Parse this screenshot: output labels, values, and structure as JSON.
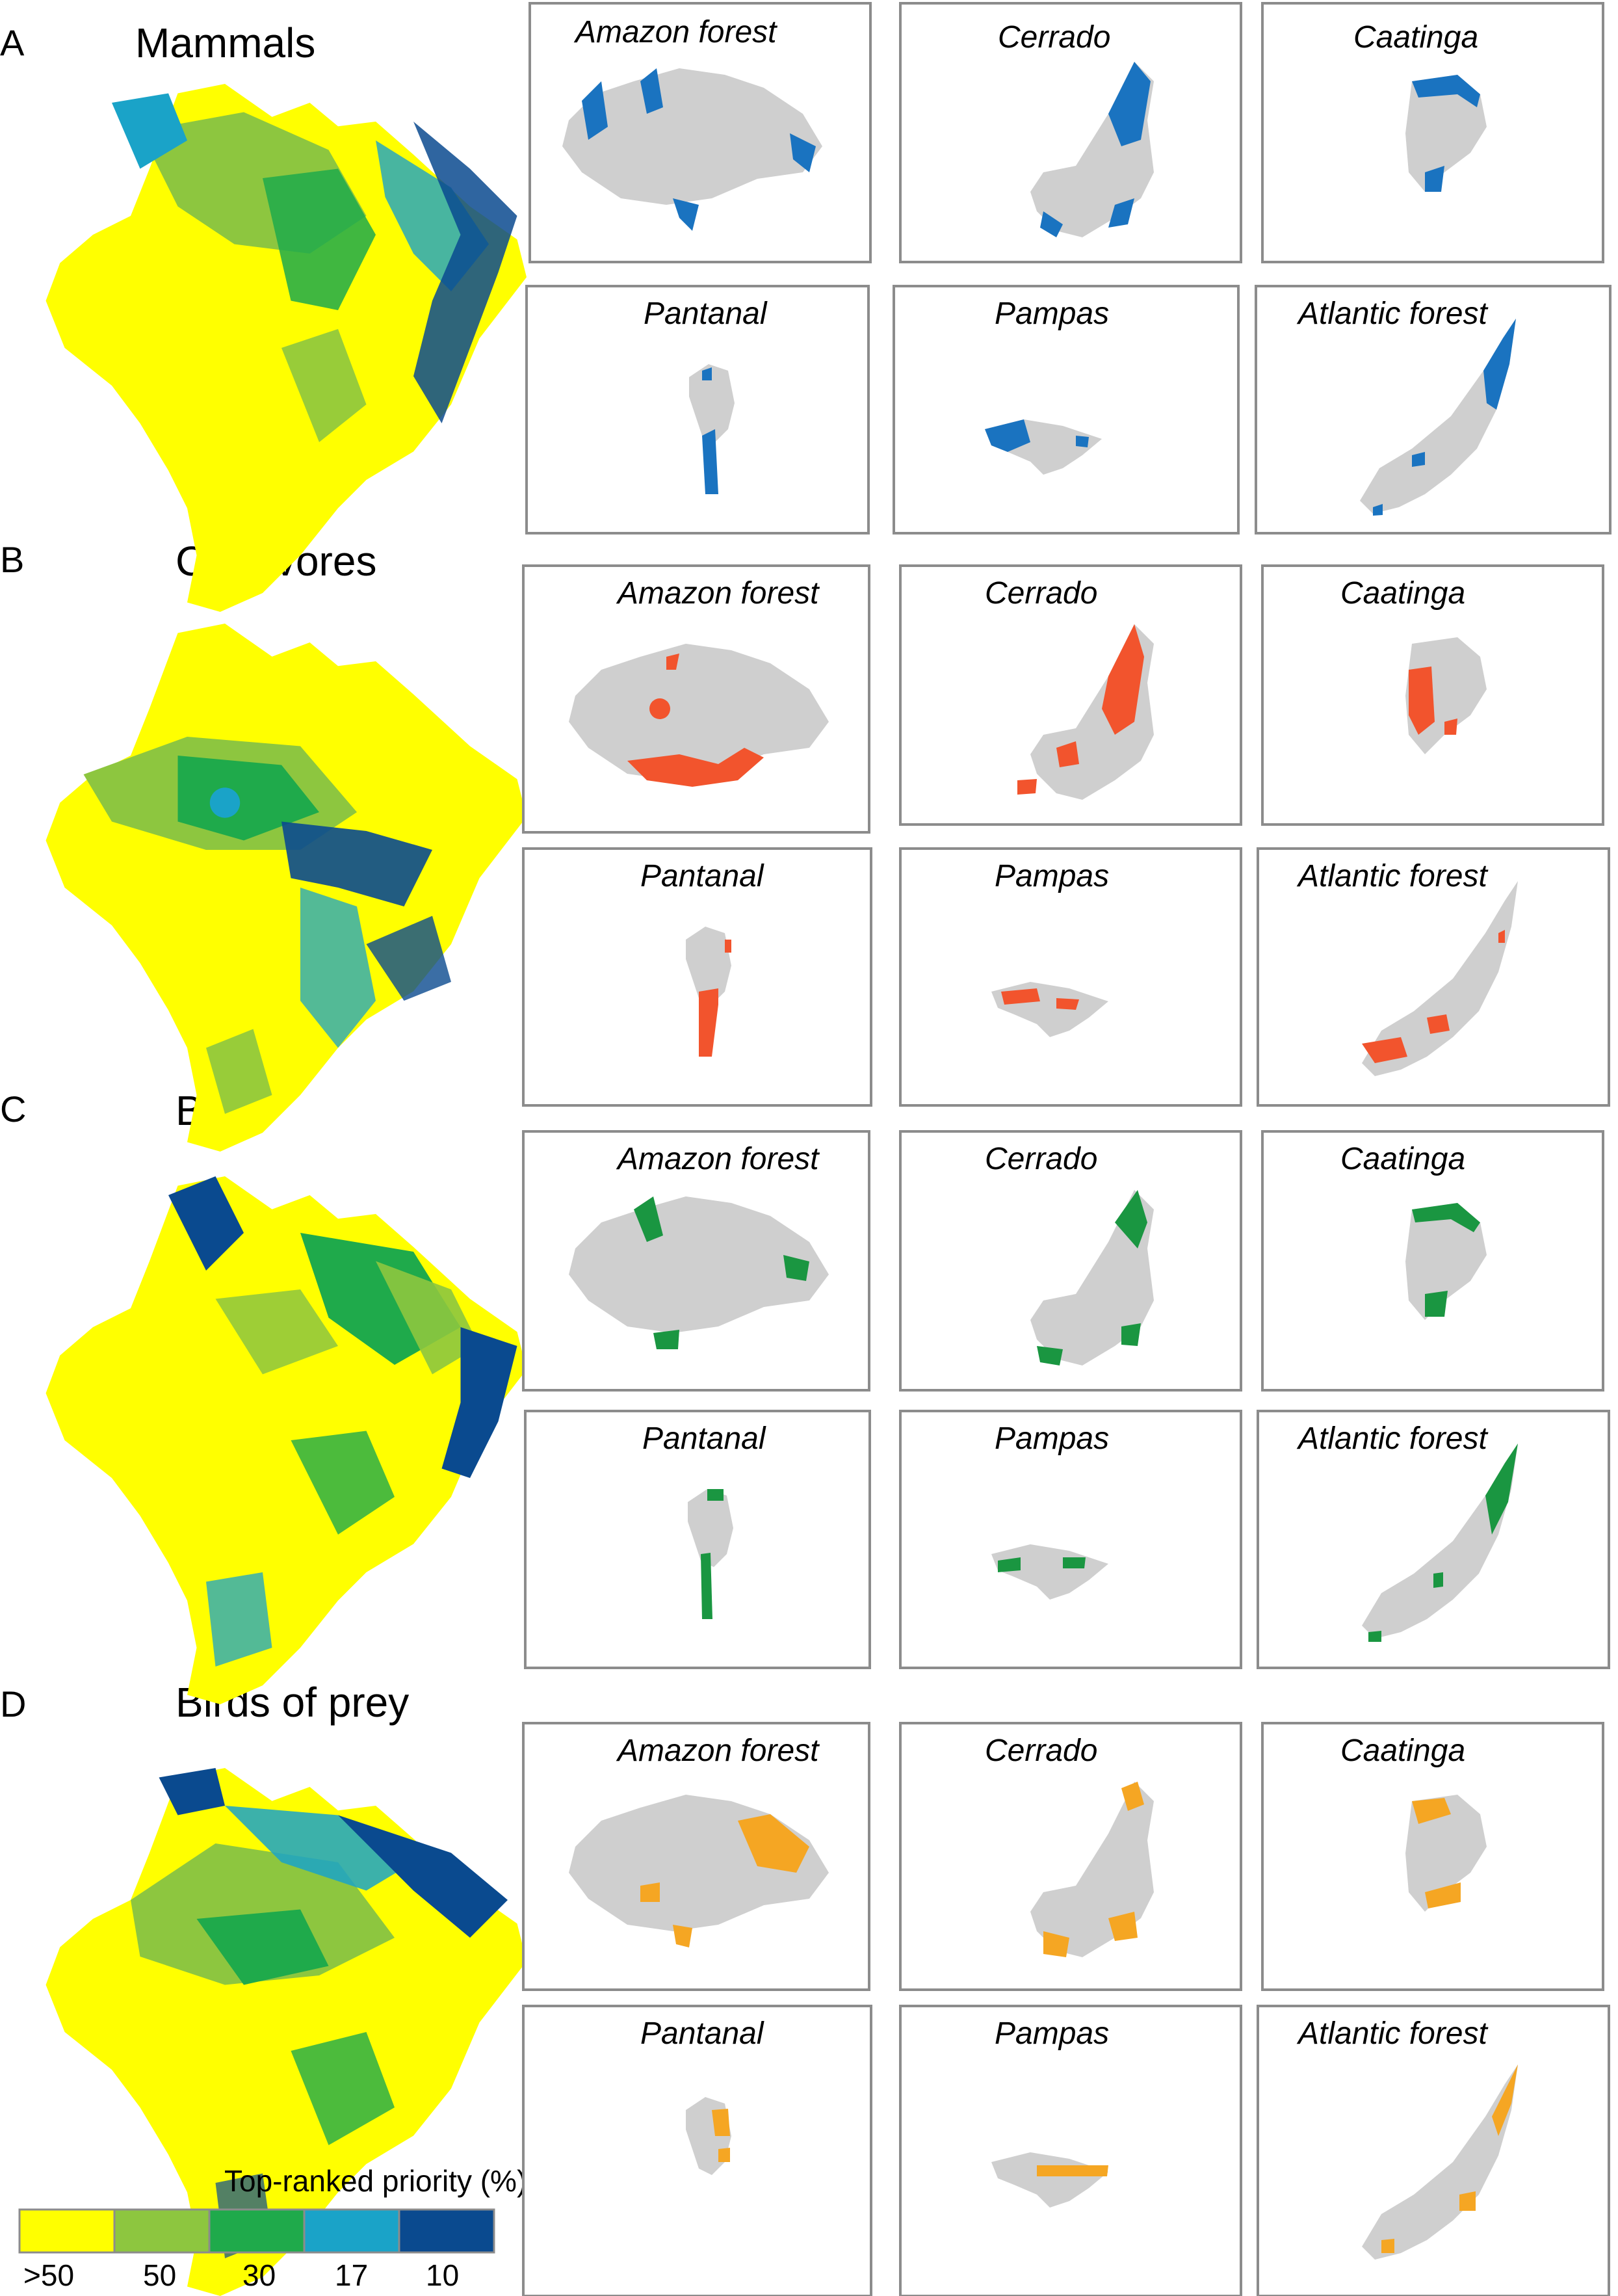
{
  "colors": {
    "gt50": "#ffff00",
    "p50": "#8dc63f",
    "p30": "#1faa4b",
    "p17": "#1aa3c8",
    "p10": "#0a4a8f",
    "gray": "#cfcfcf",
    "frame": "#8c8c8c"
  },
  "legend": {
    "title": "Top-ranked priority (%)",
    "items": [
      {
        "label": ">50",
        "color": "#ffff00"
      },
      {
        "label": "50",
        "color": "#8dc63f"
      },
      {
        "label": "30",
        "color": "#1faa4b"
      },
      {
        "label": "17",
        "color": "#1aa3c8"
      },
      {
        "label": "10",
        "color": "#0a4a8f"
      }
    ]
  },
  "groups": [
    {
      "letter": "A",
      "title": "Mammals",
      "highlight": "#1a73c0",
      "biomes": [
        "Amazon forest",
        "Cerrado",
        "Caatinga",
        "Pantanal",
        "Pampas",
        "Atlantic forest"
      ]
    },
    {
      "letter": "B",
      "title": "Carnivores",
      "highlight": "#f2542d",
      "biomes": [
        "Amazon forest",
        "Cerrado",
        "Caatinga",
        "Pantanal",
        "Pampas",
        "Atlantic forest"
      ]
    },
    {
      "letter": "C",
      "title": "Birds",
      "highlight": "#1a9641",
      "biomes": [
        "Amazon forest",
        "Cerrado",
        "Caatinga",
        "Pantanal",
        "Pampas",
        "Atlantic forest"
      ]
    },
    {
      "letter": "D",
      "title": "Birds of prey",
      "highlight": "#f5a623",
      "biomes": [
        "Amazon forest",
        "Cerrado",
        "Caatinga",
        "Pantanal",
        "Pampas",
        "Atlantic forest"
      ]
    }
  ]
}
